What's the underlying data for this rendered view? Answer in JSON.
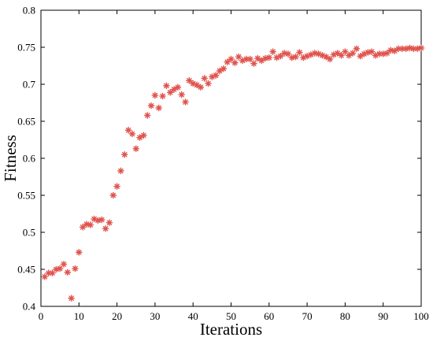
{
  "chart_data": {
    "type": "scatter",
    "xlabel": "Iterations",
    "ylabel": "Fitness",
    "xlim": [
      0,
      100
    ],
    "ylim": [
      0.4,
      0.8
    ],
    "xticks": [
      0,
      10,
      20,
      30,
      40,
      50,
      60,
      70,
      80,
      90,
      100
    ],
    "yticks": [
      0.4,
      0.45,
      0.5,
      0.55,
      0.6,
      0.65,
      0.7,
      0.75,
      0.8
    ],
    "xtick_labels": [
      "0",
      "10",
      "20",
      "30",
      "40",
      "50",
      "60",
      "70",
      "80",
      "90",
      "100"
    ],
    "ytick_labels": [
      "0.4",
      "0.45",
      "0.5",
      "0.55",
      "0.6",
      "0.65",
      "0.7",
      "0.75",
      "0.8"
    ],
    "grid": false,
    "marker": "asterisk",
    "color": "#e0534d",
    "series": [
      {
        "x": [
          1,
          2,
          3,
          4,
          5,
          6,
          7,
          8,
          9,
          10,
          11,
          12,
          13,
          14,
          15,
          16,
          17,
          18,
          19,
          20,
          21,
          22,
          23,
          24,
          25,
          26,
          27,
          28,
          29,
          30,
          31,
          32,
          33,
          34,
          35,
          36,
          37,
          38,
          39,
          40,
          41,
          42,
          43,
          44,
          45,
          46,
          47,
          48,
          49,
          50,
          51,
          52,
          53,
          54,
          55,
          56,
          57,
          58,
          59,
          60,
          61,
          62,
          63,
          64,
          65,
          66,
          67,
          68,
          69,
          70,
          71,
          72,
          73,
          74,
          75,
          76,
          77,
          78,
          79,
          80,
          81,
          82,
          83,
          84,
          85,
          86,
          87,
          88,
          89,
          90,
          91,
          92,
          93,
          94,
          95,
          96,
          97,
          98,
          99,
          100
        ],
        "y": [
          0.44,
          0.445,
          0.445,
          0.45,
          0.451,
          0.457,
          0.446,
          0.411,
          0.451,
          0.473,
          0.507,
          0.511,
          0.51,
          0.518,
          0.516,
          0.517,
          0.505,
          0.513,
          0.55,
          0.562,
          0.583,
          0.605,
          0.638,
          0.633,
          0.613,
          0.628,
          0.631,
          0.658,
          0.671,
          0.685,
          0.668,
          0.684,
          0.698,
          0.689,
          0.693,
          0.696,
          0.686,
          0.676,
          0.705,
          0.701,
          0.699,
          0.696,
          0.708,
          0.701,
          0.71,
          0.712,
          0.718,
          0.721,
          0.73,
          0.734,
          0.729,
          0.737,
          0.732,
          0.734,
          0.734,
          0.728,
          0.735,
          0.732,
          0.735,
          0.736,
          0.744,
          0.736,
          0.738,
          0.742,
          0.741,
          0.736,
          0.737,
          0.743,
          0.736,
          0.738,
          0.74,
          0.742,
          0.741,
          0.739,
          0.737,
          0.734,
          0.74,
          0.742,
          0.739,
          0.744,
          0.739,
          0.742,
          0.748,
          0.738,
          0.741,
          0.743,
          0.744,
          0.739,
          0.741,
          0.741,
          0.742,
          0.746,
          0.745,
          0.748,
          0.748,
          0.748,
          0.749,
          0.748,
          0.748,
          0.749
        ]
      }
    ]
  }
}
